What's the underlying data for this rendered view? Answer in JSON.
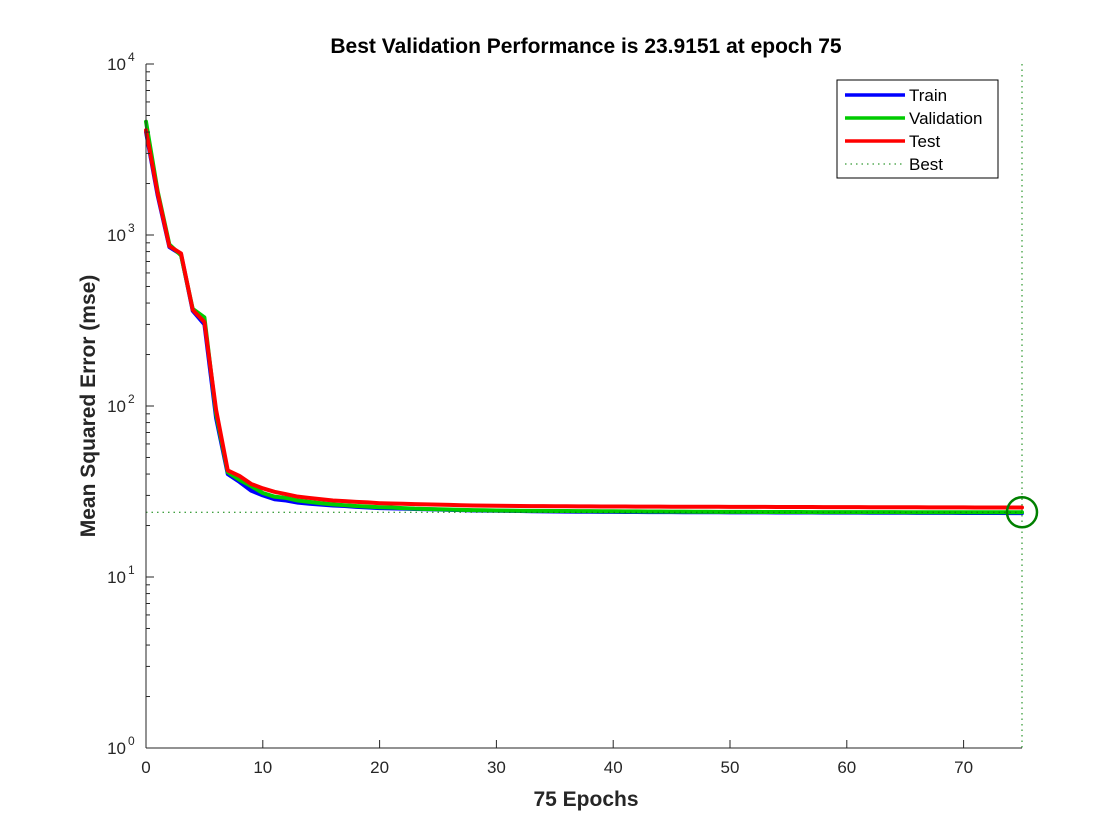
{
  "chart_data": {
    "type": "line",
    "title": "Best Validation Performance is 23.9151 at epoch 75",
    "xlabel": "75 Epochs",
    "ylabel": "Mean Squared Error  (mse)",
    "xlim": [
      0,
      75
    ],
    "ylim": [
      1,
      10000
    ],
    "yscale": "log",
    "grid": false,
    "legend_position": "top-right",
    "x_ticks": [
      0,
      10,
      20,
      30,
      40,
      50,
      60,
      70
    ],
    "y_ticks": [
      {
        "value": 1,
        "base": "10",
        "exp": "0"
      },
      {
        "value": 10,
        "base": "10",
        "exp": "1"
      },
      {
        "value": 100,
        "base": "10",
        "exp": "2"
      },
      {
        "value": 1000,
        "base": "10",
        "exp": "3"
      },
      {
        "value": 10000,
        "base": "10",
        "exp": "4"
      }
    ],
    "x": [
      0,
      1,
      2,
      3,
      4,
      5,
      6,
      7,
      8,
      9,
      10,
      11,
      12,
      13,
      14,
      15,
      16,
      17,
      18,
      19,
      20,
      21,
      22,
      23,
      24,
      25,
      26,
      27,
      28,
      29,
      30,
      31,
      32,
      33,
      34,
      35,
      36,
      37,
      38,
      39,
      40,
      41,
      42,
      43,
      44,
      45,
      46,
      47,
      48,
      49,
      50,
      51,
      52,
      53,
      54,
      55,
      56,
      57,
      58,
      59,
      60,
      61,
      62,
      63,
      64,
      65,
      66,
      67,
      68,
      69,
      70,
      71,
      72,
      73,
      74,
      75
    ],
    "series": [
      {
        "name": "Train",
        "color": "#0000ff",
        "values": [
          4000,
          1700,
          850,
          770,
          360,
          300,
          85,
          40,
          36,
          32,
          30,
          28.5,
          28,
          27.2,
          26.8,
          26.5,
          26.2,
          26,
          25.7,
          25.5,
          25.3,
          25.2,
          25.1,
          25,
          24.9,
          24.8,
          24.7,
          24.6,
          24.5,
          24.45,
          24.4,
          24.35,
          24.3,
          24.25,
          24.2,
          24.15,
          24.1,
          24.08,
          24.06,
          24.04,
          24.02,
          24,
          23.98,
          23.96,
          23.95,
          23.94,
          23.93,
          23.92,
          23.91,
          23.9,
          23.89,
          23.88,
          23.87,
          23.86,
          23.85,
          23.84,
          23.83,
          23.82,
          23.81,
          23.8,
          23.79,
          23.78,
          23.77,
          23.76,
          23.75,
          23.74,
          23.73,
          23.72,
          23.71,
          23.7,
          23.69,
          23.68,
          23.67,
          23.66,
          23.65,
          23.64
        ]
      },
      {
        "name": "Validation",
        "color": "#00cc00",
        "values": [
          4600,
          1800,
          880,
          760,
          370,
          330,
          90,
          41,
          37,
          34,
          31,
          29.5,
          29,
          28,
          27.5,
          27,
          26.6,
          26.3,
          26,
          25.8,
          25.6,
          25.5,
          25.3,
          25.1,
          25,
          24.9,
          24.8,
          24.7,
          24.6,
          24.55,
          24.5,
          24.45,
          24.4,
          24.38,
          24.36,
          24.34,
          24.3,
          24.28,
          24.26,
          24.24,
          24.22,
          24.2,
          24.18,
          24.16,
          24.14,
          24.12,
          24.1,
          24.08,
          24.06,
          24.05,
          24.04,
          24.03,
          24.02,
          24.01,
          24,
          23.99,
          23.98,
          23.97,
          23.97,
          23.96,
          23.96,
          23.95,
          23.95,
          23.94,
          23.94,
          23.93,
          23.93,
          23.93,
          23.92,
          23.92,
          23.92,
          23.92,
          23.92,
          23.92,
          23.92,
          23.9151
        ]
      },
      {
        "name": "Test",
        "color": "#ff0000",
        "values": [
          4100,
          1750,
          860,
          780,
          365,
          310,
          95,
          42,
          39,
          35,
          33,
          31.5,
          30.5,
          29.5,
          29,
          28.5,
          28,
          27.8,
          27.5,
          27.3,
          27,
          26.9,
          26.8,
          26.7,
          26.6,
          26.5,
          26.4,
          26.3,
          26.2,
          26.15,
          26.1,
          26.05,
          26,
          25.98,
          25.96,
          25.94,
          25.92,
          25.9,
          25.88,
          25.86,
          25.84,
          25.82,
          25.8,
          25.79,
          25.78,
          25.77,
          25.76,
          25.75,
          25.74,
          25.73,
          25.72,
          25.71,
          25.7,
          25.69,
          25.68,
          25.67,
          25.66,
          25.65,
          25.64,
          25.63,
          25.62,
          25.61,
          25.6,
          25.59,
          25.58,
          25.57,
          25.56,
          25.55,
          25.54,
          25.53,
          25.52,
          25.51,
          25.5,
          25.5,
          25.5,
          25.5
        ]
      }
    ],
    "best": {
      "label": "Best",
      "epoch": 75,
      "value": 23.9151,
      "color": "#008000"
    }
  }
}
